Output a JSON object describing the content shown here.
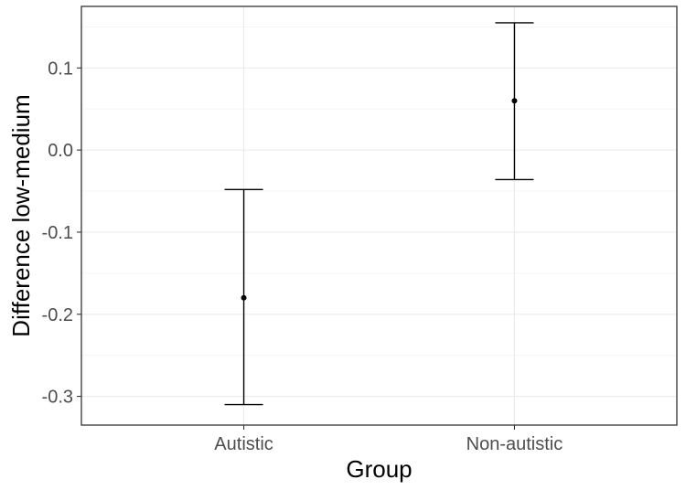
{
  "chart_data": {
    "type": "errorbar",
    "categories": [
      "Autistic",
      "Non-autistic"
    ],
    "series": [
      {
        "values": [
          -0.18,
          0.06
        ],
        "lower": [
          -0.31,
          -0.036
        ],
        "upper": [
          -0.048,
          0.155
        ]
      }
    ],
    "xlabel": "Group",
    "ylabel": "Difference low-medium",
    "ylim": [
      -0.335,
      0.175
    ],
    "yticks": [
      0.1,
      0.0,
      -0.1,
      -0.2,
      -0.3
    ],
    "ytick_labels": [
      "0.1",
      "0.0",
      "-0.1",
      "-0.2",
      "-0.3"
    ],
    "grid": true,
    "theme": "bw",
    "colors": {
      "mark": "#000000",
      "grid_major": "#ebebeb",
      "grid_minor": "#f5f5f5",
      "panel_border": "#333333",
      "tick_text": "#4d4d4d"
    }
  }
}
